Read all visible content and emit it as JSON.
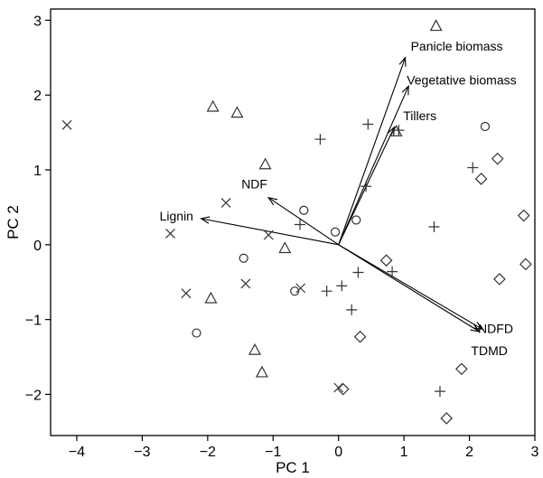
{
  "chart_data": {
    "type": "scatter",
    "xlabel": "PC 1",
    "ylabel": "PC 2",
    "xlim": [
      -4.4,
      3.0
    ],
    "ylim": [
      -2.55,
      3.15
    ],
    "xticks": [
      -4,
      -3,
      -2,
      -1,
      0,
      1,
      2,
      3
    ],
    "yticks": [
      -2,
      -1,
      0,
      1,
      2,
      3
    ],
    "grid": false,
    "marker_color": "#333333",
    "series": [
      {
        "marker": "cross-x",
        "points": [
          {
            "x": -4.15,
            "y": 1.6
          },
          {
            "x": -1.72,
            "y": 0.56
          },
          {
            "x": -2.57,
            "y": 0.15
          },
          {
            "x": -1.07,
            "y": 0.13
          },
          {
            "x": -2.33,
            "y": -0.65
          },
          {
            "x": -1.42,
            "y": -0.52
          },
          {
            "x": -0.58,
            "y": -0.58
          },
          {
            "x": 0.0,
            "y": -1.91
          }
        ]
      },
      {
        "marker": "triangle",
        "points": [
          {
            "x": 1.49,
            "y": 2.92
          },
          {
            "x": -1.92,
            "y": 1.84
          },
          {
            "x": -1.55,
            "y": 1.76
          },
          {
            "x": -1.12,
            "y": 1.07
          },
          {
            "x": 0.88,
            "y": 1.51
          },
          {
            "x": -0.82,
            "y": -0.05
          },
          {
            "x": -1.95,
            "y": -0.72
          },
          {
            "x": -1.28,
            "y": -1.41
          },
          {
            "x": -1.17,
            "y": -1.71
          }
        ]
      },
      {
        "marker": "plus",
        "points": [
          {
            "x": 0.45,
            "y": 1.61
          },
          {
            "x": -0.28,
            "y": 1.41
          },
          {
            "x": 0.92,
            "y": 1.53
          },
          {
            "x": 0.42,
            "y": 0.78
          },
          {
            "x": -0.59,
            "y": 0.27
          },
          {
            "x": 2.05,
            "y": 1.03
          },
          {
            "x": 1.46,
            "y": 0.24
          },
          {
            "x": 0.82,
            "y": -0.36
          },
          {
            "x": 0.3,
            "y": -0.37
          },
          {
            "x": 0.05,
            "y": -0.55
          },
          {
            "x": -0.18,
            "y": -0.62
          },
          {
            "x": 0.2,
            "y": -0.87
          },
          {
            "x": 1.55,
            "y": -1.96
          }
        ]
      },
      {
        "marker": "circle",
        "points": [
          {
            "x": 2.24,
            "y": 1.58
          },
          {
            "x": -0.53,
            "y": 0.46
          },
          {
            "x": -0.05,
            "y": 0.17
          },
          {
            "x": 0.27,
            "y": 0.33
          },
          {
            "x": -1.45,
            "y": -0.18
          },
          {
            "x": -0.67,
            "y": -0.62
          },
          {
            "x": -2.17,
            "y": -1.18
          }
        ]
      },
      {
        "marker": "diamond",
        "points": [
          {
            "x": 2.43,
            "y": 1.15
          },
          {
            "x": 2.18,
            "y": 0.88
          },
          {
            "x": 2.83,
            "y": 0.39
          },
          {
            "x": 2.86,
            "y": -0.26
          },
          {
            "x": 2.46,
            "y": -0.46
          },
          {
            "x": 0.73,
            "y": -0.21
          },
          {
            "x": 0.33,
            "y": -1.23
          },
          {
            "x": 1.88,
            "y": -1.66
          },
          {
            "x": 0.07,
            "y": -1.93
          },
          {
            "x": 1.65,
            "y": -2.32
          }
        ]
      }
    ],
    "vectors": [
      {
        "label": "Panicle biomass",
        "x": 1.02,
        "y": 2.5
      },
      {
        "label": "Vegetative biomass",
        "x": 1.07,
        "y": 2.12
      },
      {
        "label": "Tillers",
        "x": 0.85,
        "y": 1.57
      },
      {
        "label": "NDF",
        "x": -1.07,
        "y": 0.63
      },
      {
        "label": "Lignin",
        "x": -2.1,
        "y": 0.35
      },
      {
        "label": "NDFD",
        "x": 2.2,
        "y": -1.13
      },
      {
        "label": "TDMD",
        "x": 2.15,
        "y": -1.16
      }
    ]
  }
}
